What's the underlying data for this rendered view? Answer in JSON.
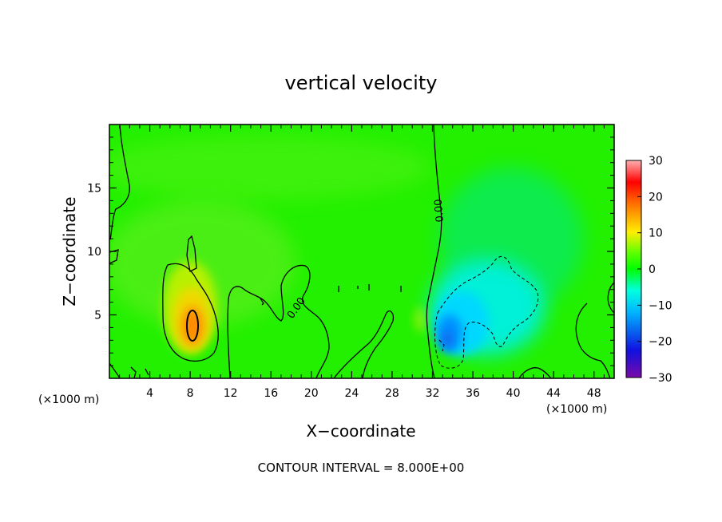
{
  "chart_data": {
    "type": "heatmap",
    "title": "vertical velocity",
    "xlabel": "X−coordinate",
    "ylabel": "Z−coordinate",
    "x_unit_left": "(×1000 m)",
    "x_unit_right": "(×1000 m)",
    "footer": "CONTOUR INTERVAL = 8.000E+00",
    "xlim": [
      0,
      50
    ],
    "ylim": [
      0,
      20
    ],
    "x_ticks": [
      4,
      8,
      12,
      16,
      20,
      24,
      28,
      32,
      36,
      40,
      44,
      48
    ],
    "x_tick_labels": [
      "4",
      "8",
      "12",
      "16",
      "20",
      "24",
      "28",
      "32",
      "36",
      "40",
      "44",
      "48"
    ],
    "y_ticks": [
      5,
      10,
      15
    ],
    "y_tick_labels": [
      "5",
      "10",
      "15"
    ],
    "colorbar": {
      "min": -30,
      "max": 30,
      "ticks": [
        30,
        20,
        10,
        0,
        -10,
        -20,
        -30
      ],
      "tick_labels": [
        "30",
        "20",
        "10",
        "0",
        "−10",
        "−20",
        "−30"
      ],
      "colors": [
        "#7a0aa8",
        "#1010e0",
        "#00b4ff",
        "#00ffe0",
        "#00ff00",
        "#ffee00",
        "#ff7000",
        "#ff0000",
        "#ffb0b0"
      ]
    },
    "field_features": [
      {
        "kind": "updraft",
        "x": 8.5,
        "z": 4.5,
        "max_value": 22
      },
      {
        "kind": "downdraft",
        "x": 33.5,
        "z": 3.0,
        "min_value": -14
      },
      {
        "kind": "downdraft",
        "x": 38.0,
        "z": 6.0,
        "min_value": -9
      }
    ],
    "contour_interval": 8.0,
    "contour_labels": [
      "0.00",
      "0.00",
      "0.00"
    ]
  }
}
